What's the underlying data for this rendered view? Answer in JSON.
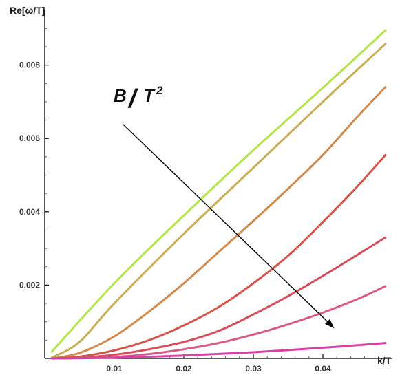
{
  "chart_data": {
    "type": "line",
    "xlabel": "k/T",
    "ylabel": "Re[ω/T]",
    "xlim": [
      0.0,
      0.05
    ],
    "ylim": [
      0.0,
      0.0094
    ],
    "x_ticks": [
      {
        "value": 0.01,
        "label": "0.01"
      },
      {
        "value": 0.02,
        "label": "0.02"
      },
      {
        "value": 0.03,
        "label": "0.03"
      },
      {
        "value": 0.04,
        "label": "0.04"
      }
    ],
    "y_ticks": [
      {
        "value": 0.002,
        "label": "0.002"
      },
      {
        "value": 0.004,
        "label": "0.004"
      },
      {
        "value": 0.006,
        "label": "0.006"
      },
      {
        "value": 0.008,
        "label": "0.008"
      }
    ],
    "x_minor_step": 0.002,
    "y_minor_step": 0.0005,
    "grid": false,
    "series": [
      {
        "color": "#b5e34a",
        "x": [
          0.001,
          0.01,
          0.02,
          0.03,
          0.04,
          0.049
        ],
        "y": [
          0.00018,
          0.00205,
          0.0039,
          0.00568,
          0.00738,
          0.00895
        ]
      },
      {
        "color": "#c9ad55",
        "x": [
          0.001,
          0.005,
          0.01,
          0.02,
          0.03,
          0.04,
          0.049
        ],
        "y": [
          2e-05,
          0.00045,
          0.0015,
          0.0034,
          0.0052,
          0.007,
          0.00858
        ]
      },
      {
        "color": "#cf8a4c",
        "x": [
          0.001,
          0.005,
          0.01,
          0.015,
          0.02,
          0.025,
          0.03,
          0.035,
          0.04,
          0.045,
          0.049
        ],
        "y": [
          0.0,
          0.00015,
          0.0006,
          0.00128,
          0.00205,
          0.0029,
          0.00375,
          0.00463,
          0.00555,
          0.0066,
          0.0074
        ]
      },
      {
        "color": "#d4534a",
        "x": [
          0.001,
          0.005,
          0.01,
          0.015,
          0.02,
          0.025,
          0.03,
          0.035,
          0.04,
          0.045,
          0.049
        ],
        "y": [
          0.0,
          5e-05,
          0.00022,
          0.0005,
          0.0009,
          0.0014,
          0.00205,
          0.0028,
          0.00372,
          0.0047,
          0.00555
        ]
      },
      {
        "color": "#d64e5c",
        "x": [
          0.001,
          0.005,
          0.01,
          0.015,
          0.02,
          0.025,
          0.03,
          0.035,
          0.04,
          0.045,
          0.049
        ],
        "y": [
          0.0,
          2e-05,
          0.0001,
          0.00025,
          0.00045,
          0.00075,
          0.0012,
          0.0017,
          0.00225,
          0.00283,
          0.0033
        ]
      },
      {
        "color": "#d85a86",
        "x": [
          0.001,
          0.005,
          0.01,
          0.015,
          0.02,
          0.025,
          0.03,
          0.035,
          0.04,
          0.045,
          0.049
        ],
        "y": [
          0.0,
          1e-05,
          4e-05,
          0.00012,
          0.00025,
          0.00042,
          0.00065,
          0.00093,
          0.00125,
          0.00162,
          0.00197
        ]
      },
      {
        "color": "#d741a8",
        "x": [
          0.001,
          0.01,
          0.02,
          0.03,
          0.04,
          0.049
        ],
        "y": [
          0.0,
          2e-05,
          8e-05,
          0.00017,
          0.00029,
          0.00042
        ]
      }
    ],
    "annotations": [
      {
        "text_main": "B",
        "text_slash": "/",
        "text_T": "T",
        "text_exp": "2"
      }
    ],
    "arrow": {
      "from": [
        0.0113,
        0.00638
      ],
      "to": [
        0.0415,
        0.00085
      ]
    }
  }
}
